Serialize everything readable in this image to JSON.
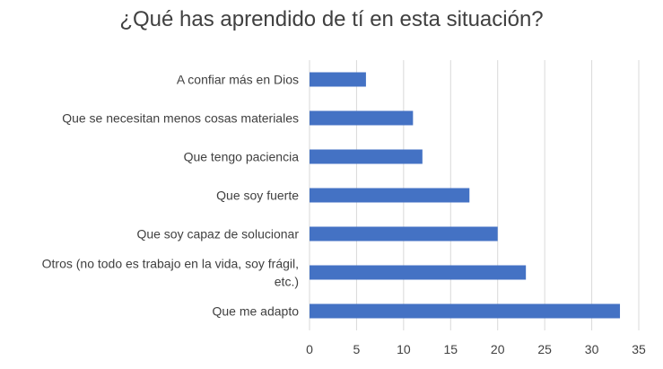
{
  "chart_data": {
    "type": "bar",
    "orientation": "horizontal",
    "title": "¿Qué has aprendido de tí en esta situación?",
    "categories": [
      "A confiar más en Dios",
      "Que se necesitan menos cosas materiales",
      "Que tengo paciencia",
      "Que soy fuerte",
      "Que soy capaz de solucionar",
      "Otros (no todo es trabajo en la vida, soy frágil, etc.)",
      "Que me adapto"
    ],
    "category_label_lines": [
      [
        "A confiar más en Dios"
      ],
      [
        "Que se necesitan menos cosas materiales"
      ],
      [
        "Que tengo paciencia"
      ],
      [
        "Que soy fuerte"
      ],
      [
        "Que soy capaz de solucionar"
      ],
      [
        "Otros (no todo es trabajo en la vida, soy frágil,",
        "etc.)"
      ],
      [
        "Que me adapto"
      ]
    ],
    "values": [
      6,
      11,
      12,
      17,
      20,
      23,
      33
    ],
    "xlim": [
      0,
      35
    ],
    "xticks": [
      0,
      5,
      10,
      15,
      20,
      25,
      30,
      35
    ],
    "grid": "vertical",
    "legend": "none",
    "bar_color": "#4472C4",
    "grid_color": "#D9D9D9"
  }
}
